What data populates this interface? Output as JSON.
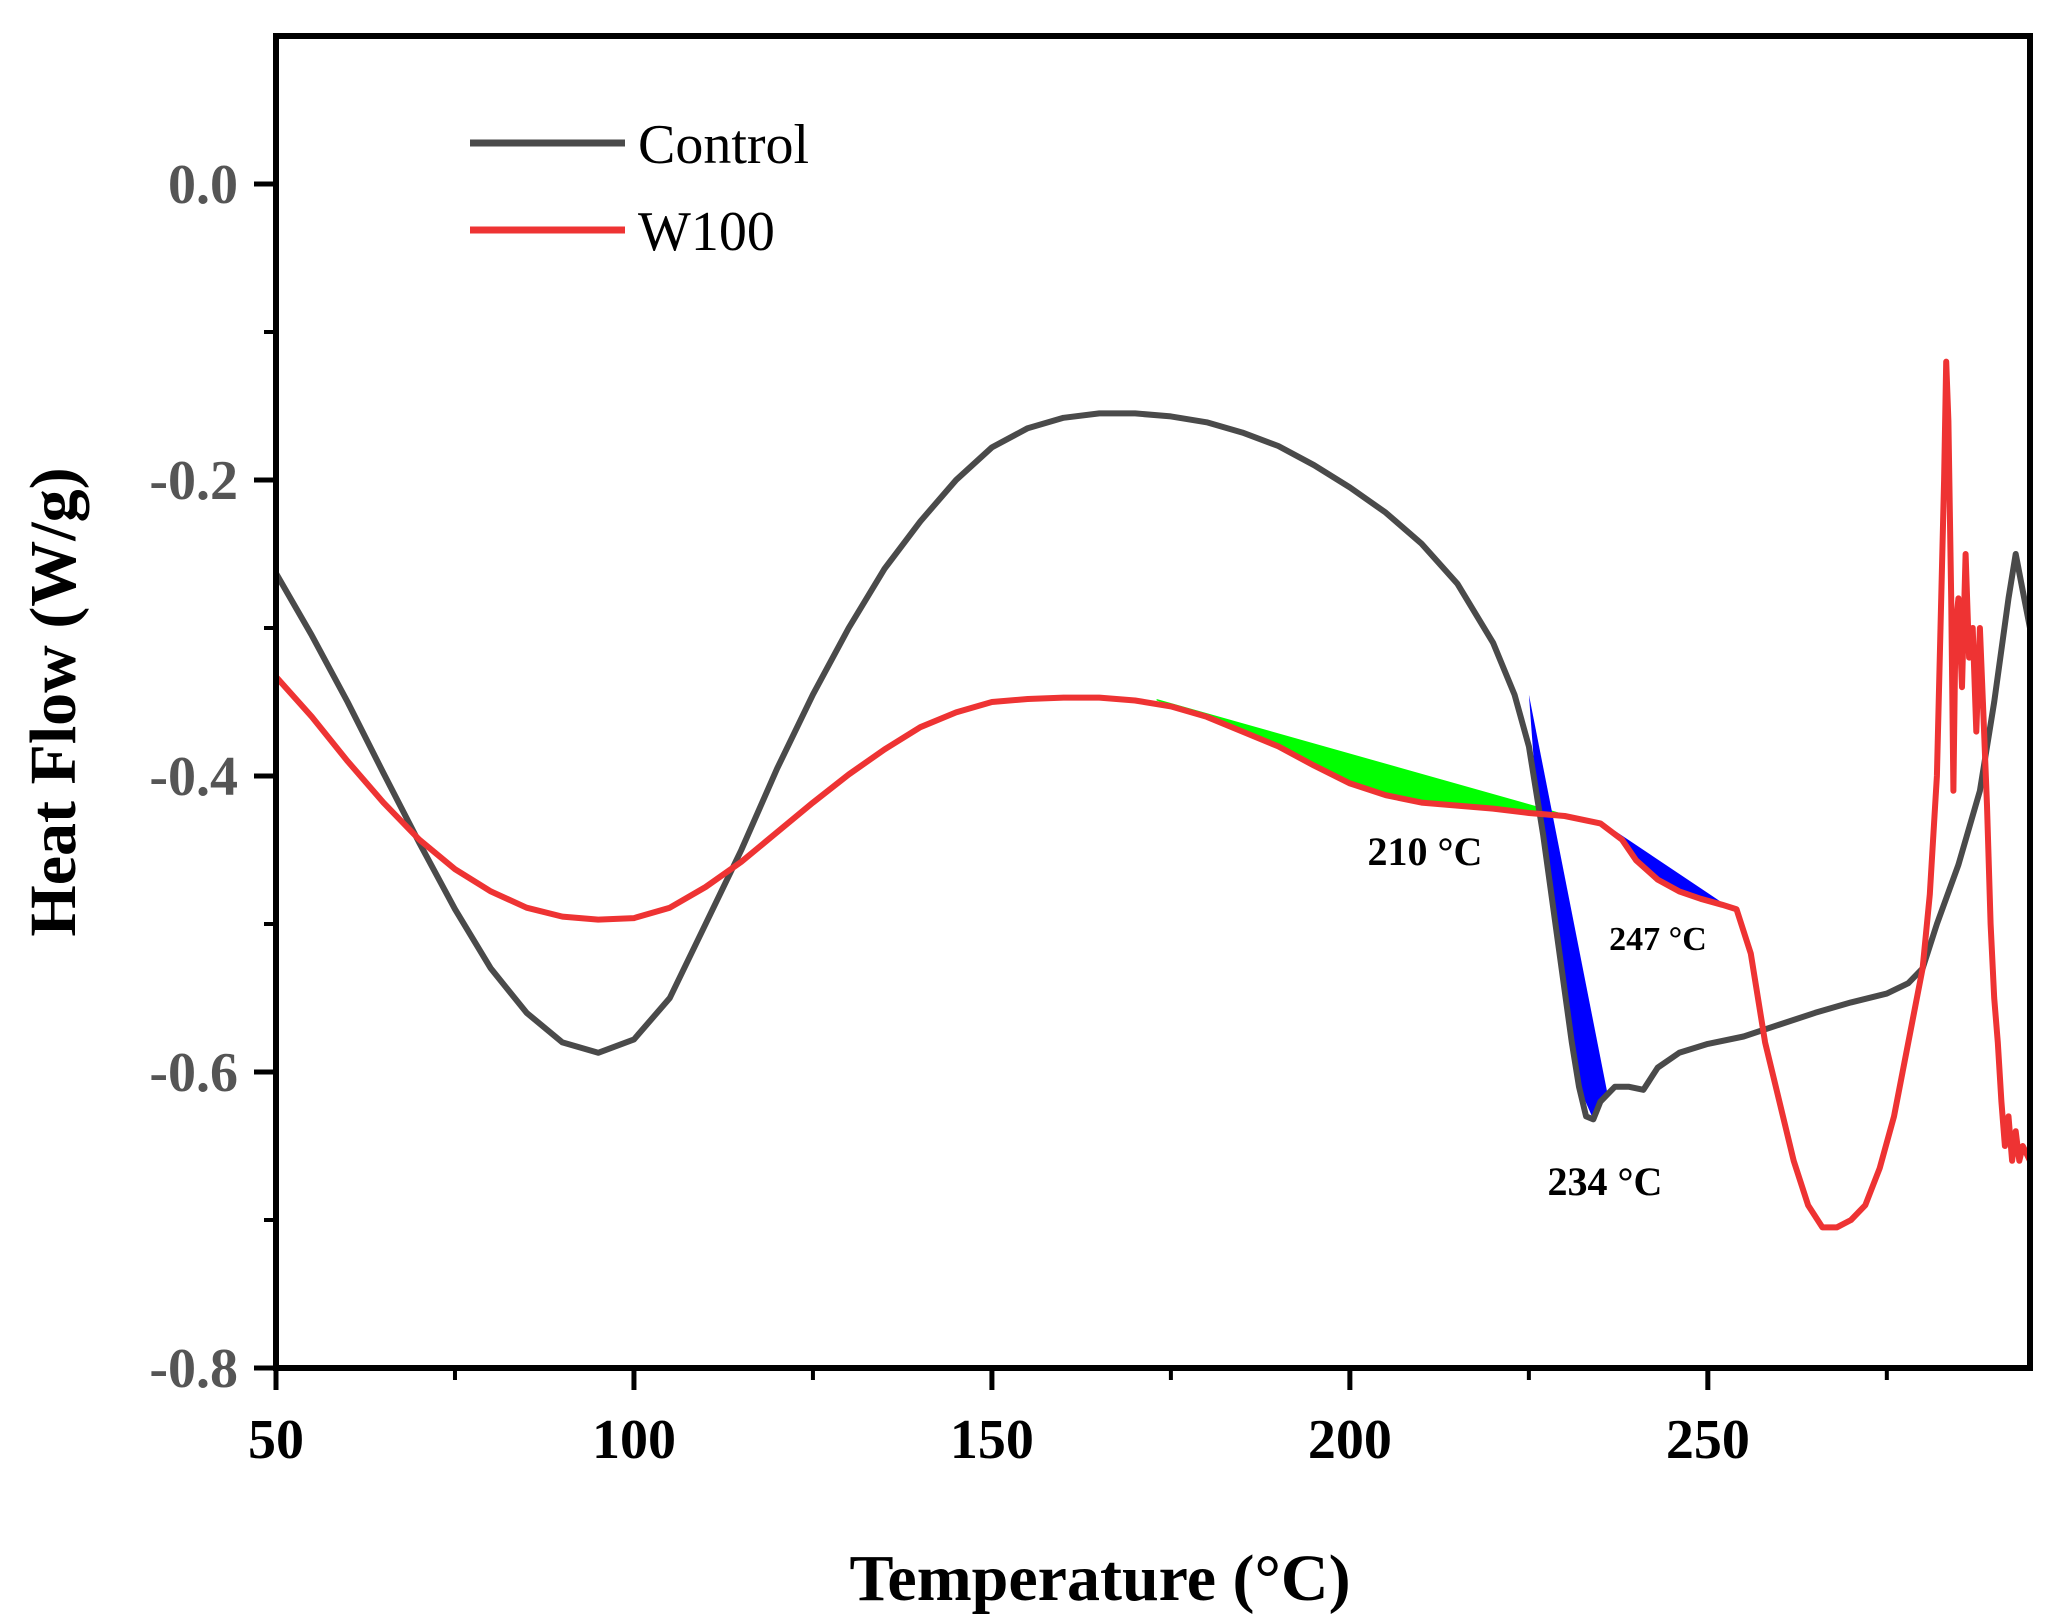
{
  "chart_data": {
    "type": "line",
    "title": "",
    "xlabel": "Temperature (°C)",
    "ylabel": "Heat Flow (W/g)",
    "xlim": [
      50,
      295
    ],
    "ylim": [
      -0.8,
      0.1
    ],
    "x_ticks": [
      50,
      100,
      150,
      200,
      250
    ],
    "x_tick_labels": [
      "50",
      "100",
      "150",
      "200",
      "250"
    ],
    "y_ticks": [
      0.0,
      -0.2,
      -0.4,
      -0.6,
      -0.8
    ],
    "y_tick_labels": [
      "0.0",
      "-0.2",
      "-0.4",
      "-0.6",
      "-0.8"
    ],
    "grid": false,
    "legend_position": "top-left",
    "series": [
      {
        "name": "Control",
        "color": "#4a4a4a",
        "points": [
          [
            50,
            -0.263
          ],
          [
            55,
            -0.305
          ],
          [
            60,
            -0.35
          ],
          [
            65,
            -0.398
          ],
          [
            70,
            -0.445
          ],
          [
            75,
            -0.49
          ],
          [
            80,
            -0.53
          ],
          [
            85,
            -0.56
          ],
          [
            90,
            -0.58
          ],
          [
            95,
            -0.587
          ],
          [
            100,
            -0.578
          ],
          [
            105,
            -0.55
          ],
          [
            110,
            -0.5
          ],
          [
            115,
            -0.45
          ],
          [
            120,
            -0.395
          ],
          [
            125,
            -0.345
          ],
          [
            130,
            -0.3
          ],
          [
            135,
            -0.26
          ],
          [
            140,
            -0.228
          ],
          [
            145,
            -0.2
          ],
          [
            150,
            -0.178
          ],
          [
            155,
            -0.165
          ],
          [
            160,
            -0.158
          ],
          [
            165,
            -0.155
          ],
          [
            170,
            -0.155
          ],
          [
            175,
            -0.157
          ],
          [
            180,
            -0.161
          ],
          [
            185,
            -0.168
          ],
          [
            190,
            -0.177
          ],
          [
            195,
            -0.19
          ],
          [
            200,
            -0.205
          ],
          [
            205,
            -0.222
          ],
          [
            210,
            -0.243
          ],
          [
            215,
            -0.27
          ],
          [
            220,
            -0.31
          ],
          [
            223,
            -0.345
          ],
          [
            225,
            -0.38
          ],
          [
            227,
            -0.44
          ],
          [
            229,
            -0.51
          ],
          [
            231,
            -0.58
          ],
          [
            232,
            -0.61
          ],
          [
            233,
            -0.63
          ],
          [
            234,
            -0.632
          ],
          [
            235,
            -0.62
          ],
          [
            237,
            -0.61
          ],
          [
            239,
            -0.61
          ],
          [
            241,
            -0.612
          ],
          [
            243,
            -0.597
          ],
          [
            246,
            -0.587
          ],
          [
            250,
            -0.581
          ],
          [
            255,
            -0.576
          ],
          [
            260,
            -0.568
          ],
          [
            265,
            -0.56
          ],
          [
            270,
            -0.553
          ],
          [
            275,
            -0.547
          ],
          [
            278,
            -0.54
          ],
          [
            280,
            -0.53
          ],
          [
            282,
            -0.5
          ],
          [
            285,
            -0.46
          ],
          [
            288,
            -0.41
          ],
          [
            290,
            -0.35
          ],
          [
            292,
            -0.28
          ],
          [
            293,
            -0.25
          ],
          [
            294,
            -0.275
          ],
          [
            295,
            -0.3
          ]
        ]
      },
      {
        "name": "W100",
        "color": "#ee3333",
        "points": [
          [
            50,
            -0.333
          ],
          [
            55,
            -0.36
          ],
          [
            60,
            -0.39
          ],
          [
            65,
            -0.418
          ],
          [
            70,
            -0.443
          ],
          [
            75,
            -0.463
          ],
          [
            80,
            -0.478
          ],
          [
            85,
            -0.489
          ],
          [
            90,
            -0.495
          ],
          [
            95,
            -0.497
          ],
          [
            100,
            -0.496
          ],
          [
            105,
            -0.489
          ],
          [
            110,
            -0.475
          ],
          [
            115,
            -0.458
          ],
          [
            120,
            -0.438
          ],
          [
            125,
            -0.418
          ],
          [
            130,
            -0.399
          ],
          [
            135,
            -0.382
          ],
          [
            140,
            -0.367
          ],
          [
            145,
            -0.357
          ],
          [
            150,
            -0.35
          ],
          [
            155,
            -0.348
          ],
          [
            160,
            -0.347
          ],
          [
            165,
            -0.347
          ],
          [
            170,
            -0.349
          ],
          [
            175,
            -0.353
          ],
          [
            180,
            -0.36
          ],
          [
            185,
            -0.37
          ],
          [
            190,
            -0.38
          ],
          [
            195,
            -0.393
          ],
          [
            200,
            -0.405
          ],
          [
            205,
            -0.413
          ],
          [
            210,
            -0.418
          ],
          [
            215,
            -0.42
          ],
          [
            220,
            -0.422
          ],
          [
            225,
            -0.425
          ],
          [
            230,
            -0.427
          ],
          [
            235,
            -0.432
          ],
          [
            238,
            -0.443
          ],
          [
            240,
            -0.457
          ],
          [
            243,
            -0.47
          ],
          [
            246,
            -0.478
          ],
          [
            249,
            -0.483
          ],
          [
            252,
            -0.487
          ],
          [
            254,
            -0.49
          ],
          [
            256,
            -0.52
          ],
          [
            258,
            -0.58
          ],
          [
            260,
            -0.62
          ],
          [
            262,
            -0.66
          ],
          [
            264,
            -0.69
          ],
          [
            266,
            -0.705
          ],
          [
            268,
            -0.705
          ],
          [
            270,
            -0.7
          ],
          [
            272,
            -0.69
          ],
          [
            274,
            -0.665
          ],
          [
            276,
            -0.63
          ],
          [
            278,
            -0.58
          ],
          [
            280,
            -0.53
          ],
          [
            281,
            -0.48
          ],
          [
            282,
            -0.4
          ],
          [
            282.5,
            -0.3
          ],
          [
            283,
            -0.2
          ],
          [
            283.3,
            -0.12
          ],
          [
            283.6,
            -0.16
          ],
          [
            284,
            -0.28
          ],
          [
            284.3,
            -0.41
          ],
          [
            284.6,
            -0.3
          ],
          [
            285,
            -0.28
          ],
          [
            285.5,
            -0.34
          ],
          [
            286,
            -0.25
          ],
          [
            286.5,
            -0.32
          ],
          [
            287,
            -0.3
          ],
          [
            287.5,
            -0.37
          ],
          [
            288,
            -0.3
          ],
          [
            288.5,
            -0.36
          ],
          [
            289,
            -0.42
          ],
          [
            289.5,
            -0.5
          ],
          [
            290,
            -0.55
          ],
          [
            290.5,
            -0.58
          ],
          [
            291,
            -0.62
          ],
          [
            291.5,
            -0.65
          ],
          [
            292,
            -0.63
          ],
          [
            292.5,
            -0.66
          ],
          [
            293,
            -0.64
          ],
          [
            293.5,
            -0.66
          ],
          [
            294,
            -0.65
          ],
          [
            295,
            -0.66
          ]
        ]
      }
    ],
    "shaded_regions": [
      {
        "color": "#00ff00",
        "top": [
          [
            173,
            -0.348
          ],
          [
            236,
            -0.434
          ]
        ],
        "bottom": [
          [
            173,
            -0.349
          ],
          [
            180,
            -0.36
          ],
          [
            185,
            -0.37
          ],
          [
            190,
            -0.38
          ],
          [
            195,
            -0.393
          ],
          [
            200,
            -0.405
          ],
          [
            205,
            -0.413
          ],
          [
            210,
            -0.418
          ],
          [
            215,
            -0.42
          ],
          [
            220,
            -0.422
          ],
          [
            225,
            -0.425
          ],
          [
            230,
            -0.427
          ],
          [
            236,
            -0.434
          ]
        ]
      },
      {
        "color": "#0000ff",
        "top": [
          [
            225,
            -0.345
          ],
          [
            236,
            -0.615
          ]
        ],
        "bottom": [
          [
            225,
            -0.345
          ],
          [
            226,
            -0.41
          ],
          [
            228,
            -0.48
          ],
          [
            230,
            -0.55
          ],
          [
            232,
            -0.61
          ],
          [
            234,
            -0.632
          ],
          [
            236,
            -0.615
          ]
        ]
      },
      {
        "color": "#0000ff",
        "top": [
          [
            237,
            -0.437
          ],
          [
            254,
            -0.492
          ]
        ],
        "bottom": [
          [
            237,
            -0.437
          ],
          [
            239,
            -0.45
          ],
          [
            241,
            -0.462
          ],
          [
            243,
            -0.47
          ],
          [
            246,
            -0.478
          ],
          [
            249,
            -0.483
          ],
          [
            252,
            -0.487
          ],
          [
            254,
            -0.492
          ]
        ]
      }
    ],
    "annotations": [
      {
        "text": "210 °C",
        "x": 210,
        "y": -0.457
      },
      {
        "text": "247 °C",
        "x": 247,
        "y": -0.508
      },
      {
        "text": "234 °C",
        "x": 234,
        "y": -0.677
      }
    ]
  }
}
